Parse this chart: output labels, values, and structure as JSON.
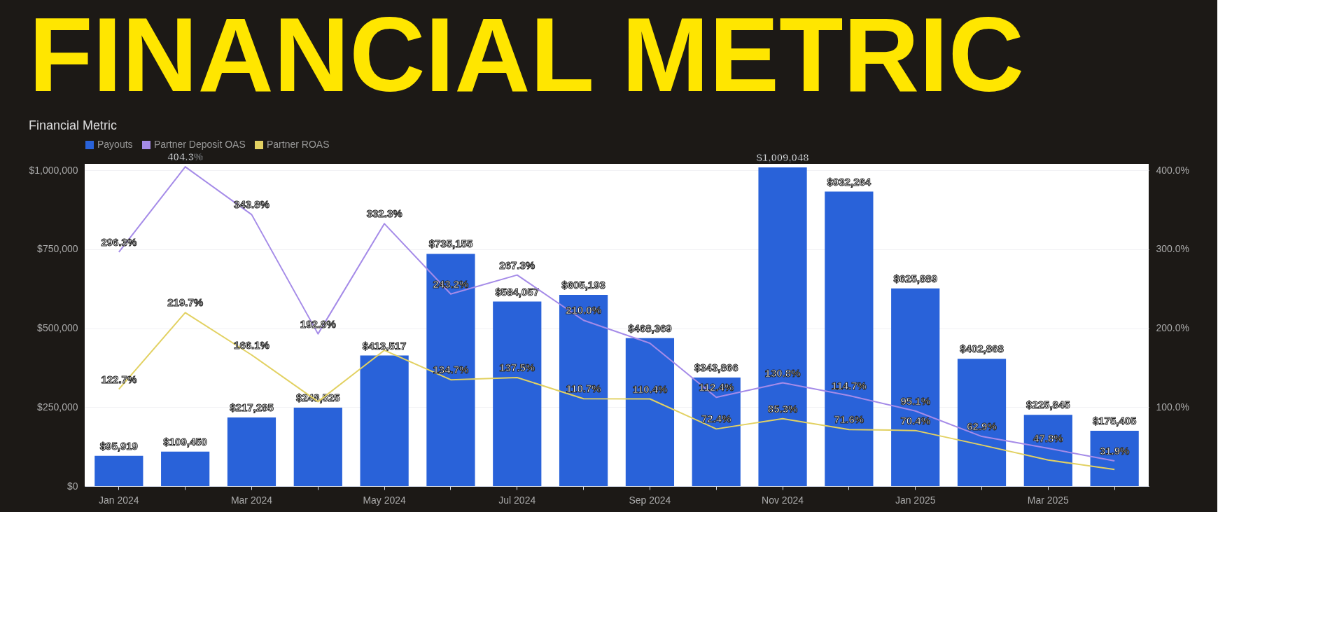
{
  "chart_data": {
    "type": "bar",
    "title": "FINANCIAL METRIC",
    "subtitle": "Financial Metric",
    "categories": [
      "Jan 2024",
      null,
      "Mar 2024",
      null,
      "May 2024",
      null,
      "Jul 2024",
      null,
      "Sep 2024",
      null,
      "Nov 2024",
      null,
      "Jan 2025",
      null,
      "Mar 2025",
      null
    ],
    "series": [
      {
        "name": "Payouts",
        "type": "bar",
        "color": "#2962d9",
        "values": [
          95919,
          109450,
          217285,
          248525,
          413517,
          735155,
          584057,
          605193,
          468369,
          343866,
          1009048,
          932264,
          625889,
          402868,
          225845,
          175405
        ],
        "value_labels": [
          "$95,919",
          "$109,450",
          "$217,285",
          "$248,525",
          "$413,517",
          "$735,155",
          "$584,057",
          "$605,193",
          "$468,369",
          "$343,866",
          "$1,009,048",
          "$932,264",
          "$625,889",
          "$402,868",
          "$225,845",
          "$175,405"
        ]
      },
      {
        "name": "Partner Deposit OAS",
        "type": "line",
        "axis": "y2",
        "color": "#a58be8",
        "values": [
          296.3,
          404.3,
          343.8,
          192.8,
          332.3,
          243.2,
          267.3,
          210.0,
          181,
          112.4,
          130.8,
          114.7,
          95.1,
          62.9,
          47.8,
          31.9
        ],
        "value_labels": [
          "296.3%",
          "404.3%",
          "343.8%",
          "192.8%",
          "332.3%",
          "243.2%",
          "267.3%",
          "210.0%",
          null,
          "112.4%",
          "130.8%",
          "114.7%",
          "95.1%",
          "62.9%",
          "47.8%",
          "31.9%"
        ]
      },
      {
        "name": "Partner ROAS",
        "type": "line",
        "axis": "y2",
        "color": "#e2d162",
        "values": [
          122.7,
          219.7,
          166.1,
          107,
          172,
          134.7,
          137.5,
          110.7,
          110.4,
          72.4,
          85.3,
          71.6,
          70.4,
          52,
          33,
          21
        ],
        "value_labels": [
          "122.7%",
          "219.7%",
          "166.1%",
          null,
          null,
          "134.7%",
          "137.5%",
          "110.7%",
          "110.4%",
          "72.4%",
          "85.3%",
          "71.6%",
          "70.4%",
          null,
          null,
          null
        ]
      }
    ],
    "ylim": [
      0,
      1020000
    ],
    "yticks": [
      {
        "value": 0,
        "label": "$0"
      },
      {
        "value": 250000,
        "label": "$250,000"
      },
      {
        "value": 500000,
        "label": "$500,000"
      },
      {
        "value": 750000,
        "label": "$750,000"
      },
      {
        "value": 1000000,
        "label": "$1,000,000"
      }
    ],
    "y2lim": [
      0,
      408
    ],
    "y2ticks": [
      {
        "value": 100,
        "label": "100.0%"
      },
      {
        "value": 200,
        "label": "200.0%"
      },
      {
        "value": 300,
        "label": "300.0%"
      },
      {
        "value": 400,
        "label": "400.0%"
      }
    ],
    "grid": "y",
    "legend": "top",
    "marker": "none",
    "line_style": "solid"
  }
}
